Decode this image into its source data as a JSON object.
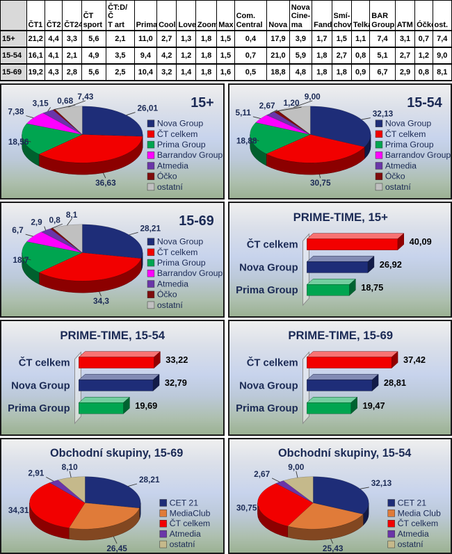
{
  "accent_colors": {
    "navy": "#1E2D78",
    "red": "#F20000",
    "green": "#00A550",
    "magenta": "#FF00FF",
    "purple": "#6A35A8",
    "dark_red": "#7E0C0C",
    "silver": "#C0C0C0",
    "orange": "#E07B39",
    "tan": "#C5B98B",
    "label_text": "#1B2A55"
  },
  "table": {
    "corner_label": "",
    "columns": [
      "ČT1",
      "ČT2",
      "ČT24",
      "ČT\nsport",
      "ČT:D/Č\nT art",
      "Prima",
      "Cool",
      "Love",
      "Zoom",
      "Max",
      "Com.\nCentral",
      "Nova",
      "Nova\nCine-\nma",
      "Fanda",
      "Smí-\nchov",
      "Telka",
      "BAR\nGroup",
      "ATM",
      "Óčko",
      "ost."
    ],
    "rows": [
      {
        "label": "15+",
        "values": [
          "21,2",
          "4,4",
          "3,3",
          "5,6",
          "2,1",
          "11,0",
          "2,7",
          "1,3",
          "1,8",
          "1,5",
          "0,4",
          "17,9",
          "3,9",
          "1,7",
          "1,5",
          "1,1",
          "7,4",
          "3,1",
          "0,7",
          "7,4"
        ]
      },
      {
        "label": "15-54",
        "values": [
          "16,1",
          "4,1",
          "2,1",
          "4,9",
          "3,5",
          "9,4",
          "4,2",
          "1,2",
          "1,8",
          "1,5",
          "0,7",
          "21,0",
          "5,9",
          "1,8",
          "2,7",
          "0,8",
          "5,1",
          "2,7",
          "1,2",
          "9,0"
        ]
      },
      {
        "label": "15-69",
        "values": [
          "19,2",
          "4,3",
          "2,8",
          "5,6",
          "2,5",
          "10,4",
          "3,2",
          "1,4",
          "1,8",
          "1,6",
          "0,5",
          "18,8",
          "4,8",
          "1,8",
          "1,8",
          "0,9",
          "6,7",
          "2,9",
          "0,8",
          "8,1"
        ]
      }
    ]
  },
  "chart_data": [
    {
      "id": "pie-15plus",
      "type": "pie",
      "title": "15+",
      "title_align": "right",
      "legend_position": "right",
      "categories": [
        "Nova Group",
        "ČT celkem",
        "Prima Group",
        "Barrandov Group",
        "Atmedia",
        "Óčko",
        "ostatní"
      ],
      "values": [
        26.01,
        36.63,
        18.56,
        7.38,
        3.15,
        0.68,
        7.43
      ],
      "labels": [
        "26,01",
        "36,63",
        "18,56",
        "7,38",
        "3,15",
        "0,68",
        "7,43"
      ],
      "colors": [
        "#1E2D78",
        "#F20000",
        "#00A550",
        "#FF00FF",
        "#6A35A8",
        "#7E0C0C",
        "#C0C0C0"
      ]
    },
    {
      "id": "pie-1554",
      "type": "pie",
      "title": "15-54",
      "title_align": "right",
      "legend_position": "right",
      "categories": [
        "Nova Group",
        "ČT celkem",
        "Prima Group",
        "Barrandov Group",
        "Atmedia",
        "Óčko",
        "ostatní"
      ],
      "values": [
        32.13,
        30.75,
        18.88,
        5.11,
        2.67,
        1.2,
        9.0
      ],
      "labels": [
        "32,13",
        "30,75",
        "18,88",
        "5,11",
        "2,67",
        "1,20",
        "9,00"
      ],
      "colors": [
        "#1E2D78",
        "#F20000",
        "#00A550",
        "#FF00FF",
        "#6A35A8",
        "#7E0C0C",
        "#C0C0C0"
      ]
    },
    {
      "id": "pie-1569",
      "type": "pie",
      "title": "15-69",
      "title_align": "right",
      "legend_position": "right",
      "categories": [
        "Nova Group",
        "ČT celkem",
        "Prima Group",
        "Barrandov Group",
        "Atmedia",
        "Óčko",
        "ostatní"
      ],
      "values": [
        28.21,
        34.3,
        18.7,
        6.7,
        2.9,
        0.8,
        8.1
      ],
      "labels": [
        "28,21",
        "34,3",
        "18,7",
        "6,7",
        "2,9",
        "0,8",
        "8,1"
      ],
      "colors": [
        "#1E2D78",
        "#F20000",
        "#00A550",
        "#FF00FF",
        "#6A35A8",
        "#7E0C0C",
        "#C0C0C0"
      ]
    },
    {
      "id": "bar-prime-15plus",
      "type": "bar",
      "title": "PRIME-TIME, 15+",
      "title_align": "center",
      "categories": [
        "ČT celkem",
        "Nova Group",
        "Prima Group"
      ],
      "values": [
        40.09,
        26.92,
        18.75
      ],
      "labels": [
        "40,09",
        "26,92",
        "18,75"
      ],
      "colors": [
        "#F20000",
        "#1E2D78",
        "#00A550"
      ],
      "xlim": [
        0,
        45
      ],
      "grid": false,
      "legend_position": "none"
    },
    {
      "id": "bar-prime-1554",
      "type": "bar",
      "title": "PRIME-TIME, 15-54",
      "title_align": "center",
      "categories": [
        "ČT celkem",
        "Nova Group",
        "Prima Group"
      ],
      "values": [
        33.22,
        32.79,
        19.69
      ],
      "labels": [
        "33,22",
        "32,79",
        "19,69"
      ],
      "colors": [
        "#F20000",
        "#1E2D78",
        "#00A550"
      ],
      "xlim": [
        0,
        45
      ],
      "grid": false,
      "legend_position": "none"
    },
    {
      "id": "bar-prime-1569",
      "type": "bar",
      "title": "PRIME-TIME, 15-69",
      "title_align": "center",
      "categories": [
        "ČT celkem",
        "Nova Group",
        "Prima Group"
      ],
      "values": [
        37.42,
        28.81,
        19.47
      ],
      "labels": [
        "37,42",
        "28,81",
        "19,47"
      ],
      "colors": [
        "#F20000",
        "#1E2D78",
        "#00A550"
      ],
      "xlim": [
        0,
        45
      ],
      "grid": false,
      "legend_position": "none"
    },
    {
      "id": "pie-business-1569",
      "type": "pie",
      "title": "Obchodní skupiny, 15-69",
      "title_align": "center",
      "legend_position": "right",
      "categories": [
        "CET 21",
        "MediaClub",
        "ČT celkem",
        "Atmedia",
        "ostatní"
      ],
      "values": [
        28.21,
        26.45,
        34.31,
        2.91,
        8.1
      ],
      "labels": [
        "28,21",
        "26,45",
        "34,31",
        "2,91",
        "8,10"
      ],
      "colors": [
        "#1E2D78",
        "#E07B39",
        "#F20000",
        "#6A35A8",
        "#C5B98B"
      ]
    },
    {
      "id": "pie-business-1554",
      "type": "pie",
      "title": "Obchodní skupiny, 15-54",
      "title_align": "center",
      "legend_position": "right",
      "categories": [
        "CET 21",
        "Media Club",
        "ČT celkem",
        "Atmedia",
        "ostatní"
      ],
      "values": [
        32.13,
        25.43,
        30.75,
        2.67,
        9.0
      ],
      "labels": [
        "32,13",
        "25,43",
        "30,75",
        "2,67",
        "9,00"
      ],
      "colors": [
        "#1E2D78",
        "#E07B39",
        "#F20000",
        "#6A35A8",
        "#C5B98B"
      ]
    }
  ]
}
